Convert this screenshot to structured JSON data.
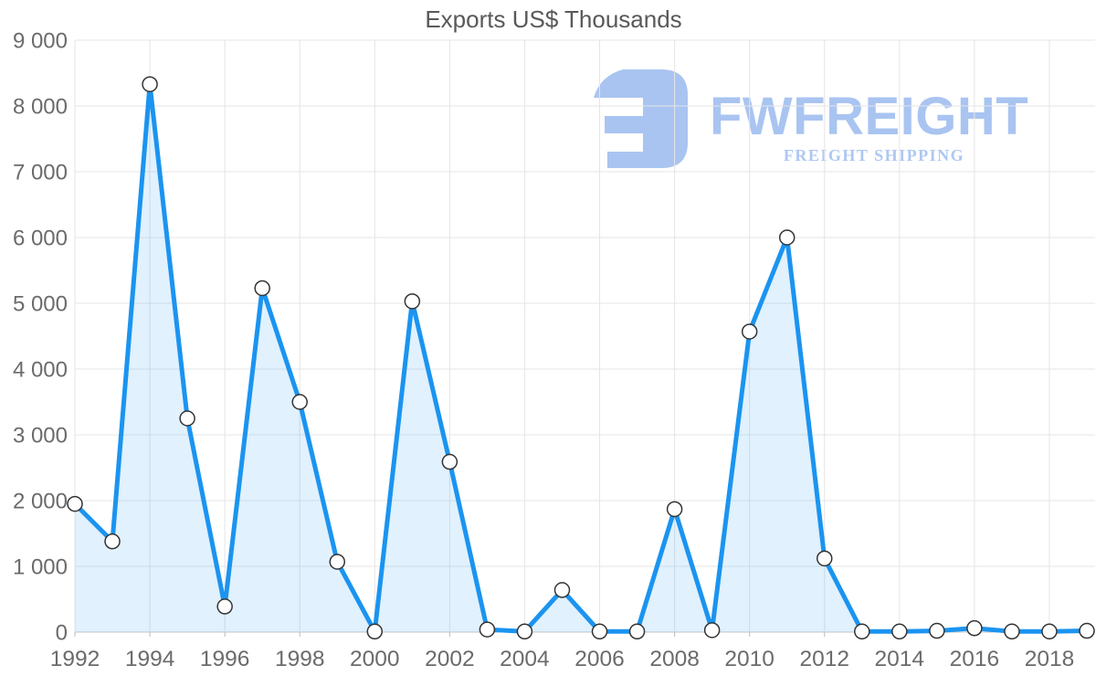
{
  "chart_data": {
    "type": "area",
    "title": "Exports US$ Thousands",
    "series_name": "Exports",
    "x": [
      1992,
      1993,
      1994,
      1995,
      1996,
      1997,
      1998,
      1999,
      2000,
      2001,
      2002,
      2003,
      2004,
      2005,
      2006,
      2007,
      2008,
      2009,
      2010,
      2011,
      2012,
      2013,
      2014,
      2015,
      2016,
      2017,
      2018,
      2019
    ],
    "values": [
      1950,
      1380,
      8330,
      3250,
      390,
      5230,
      3500,
      1070,
      10,
      5030,
      2590,
      40,
      10,
      640,
      10,
      10,
      1870,
      30,
      4570,
      6000,
      1120,
      10,
      10,
      20,
      60,
      10,
      10,
      20
    ],
    "ylim": [
      0,
      9000
    ],
    "ytick_values": [
      0,
      1000,
      2000,
      3000,
      4000,
      5000,
      6000,
      7000,
      8000,
      9000
    ],
    "ytick_labels": [
      "0",
      "1 000",
      "2 000",
      "3 000",
      "4 000",
      "5 000",
      "6 000",
      "7 000",
      "8 000",
      "9 000"
    ],
    "xtick_years": [
      1992,
      1994,
      1996,
      1998,
      2000,
      2002,
      2004,
      2006,
      2008,
      2010,
      2012,
      2014,
      2016,
      2018
    ],
    "xtick_labels": [
      "1992",
      "1994",
      "1996",
      "1998",
      "2000",
      "2002",
      "2004",
      "2006",
      "2008",
      "2010",
      "2012",
      "2014",
      "2016",
      "2018"
    ],
    "grid": true,
    "legend": "none",
    "marker": "circle"
  },
  "colors": {
    "line": "#1b94f0",
    "fill": "rgba(27,148,240,0.13)",
    "marker_fill": "#ffffff",
    "marker_stroke": "#333333",
    "grid": "#e5e5e5",
    "axis": "#c8c8c8",
    "tick_stub": "#bbbbbb",
    "tick_label": "#6b6b6b",
    "title": "#595959",
    "logo": "#a9c4f1",
    "logo_tagline": "#aec7f3"
  },
  "watermark": {
    "brand": "FWFREIGHT",
    "tagline": "FREIGHT SHIPPING",
    "icon": "fwfreight-logo-icon"
  }
}
